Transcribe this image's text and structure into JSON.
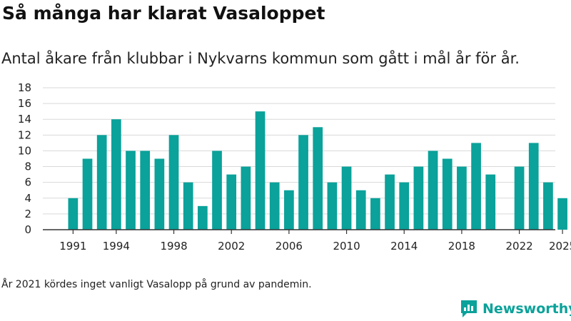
{
  "title": "Så många har klarat Vasaloppet",
  "subtitle": "Antal åkare från klubbar i Nykvarns kommun som gått i mål år för år.",
  "footnote": "År 2021 kördes inget vanligt Vasalopp på grund av pandemin.",
  "brand": {
    "name": "Newsworthy",
    "icon": "newsworthy-logo-icon"
  },
  "colors": {
    "bar": "#0aa29a",
    "grid": "#d9d9d9",
    "axis": "#333333",
    "text": "#222222",
    "brand": "#0aa29a"
  },
  "chart_data": {
    "type": "bar",
    "title": "Så många har klarat Vasaloppet",
    "xlabel": "",
    "ylabel": "",
    "ylim": [
      0,
      18
    ],
    "yticks": [
      0,
      2,
      4,
      6,
      8,
      10,
      12,
      14,
      16,
      18
    ],
    "xticks": [
      1991,
      1994,
      1998,
      2002,
      2006,
      2010,
      2014,
      2018,
      2022,
      2025
    ],
    "grid": true,
    "categories": [
      1991,
      1992,
      1993,
      1994,
      1995,
      1996,
      1997,
      1998,
      1999,
      2000,
      2001,
      2002,
      2003,
      2004,
      2005,
      2006,
      2007,
      2008,
      2009,
      2010,
      2011,
      2012,
      2013,
      2014,
      2015,
      2016,
      2017,
      2018,
      2019,
      2020,
      2021,
      2022,
      2023,
      2024,
      2025
    ],
    "values": [
      4,
      9,
      12,
      14,
      10,
      10,
      9,
      12,
      6,
      3,
      10,
      7,
      8,
      15,
      6,
      5,
      12,
      13,
      6,
      8,
      5,
      4,
      7,
      6,
      8,
      10,
      9,
      8,
      11,
      7,
      null,
      8,
      11,
      6,
      4
    ]
  }
}
